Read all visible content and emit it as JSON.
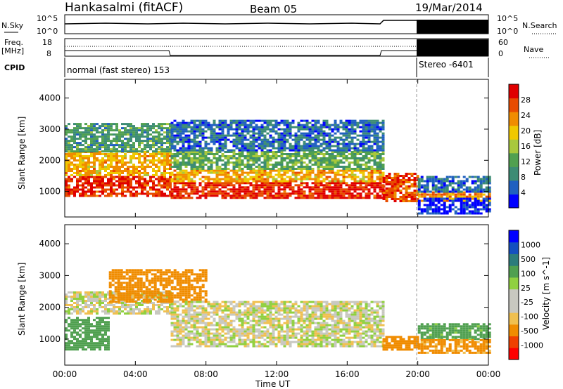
{
  "header": {
    "station": "Hankasalmi (fitACF)",
    "beam": "Beam 05",
    "date": "19/Mar/2014"
  },
  "noise_panel": {
    "left_label": "N.Sky",
    "left_ticks": [
      "10^5",
      "10^0"
    ],
    "right_ticks": [
      "10^5",
      "10^0"
    ],
    "right_label": "N.Search"
  },
  "freq_panel": {
    "left_label_1": "Freq.",
    "left_label_2": "[MHz]",
    "left_ticks": [
      "18",
      "8"
    ],
    "right_ticks": [
      "60",
      "0"
    ],
    "right_label": "Nave"
  },
  "cpid_panel": {
    "label": "CPID",
    "mode_1": "normal (fast stereo) 153",
    "mode_2": "Stereo -6401"
  },
  "chart_data": [
    {
      "type": "heatmap",
      "title": "",
      "xlabel": "Time UT",
      "ylabel": "Slant Range [km]",
      "xlim_hours": [
        0,
        24
      ],
      "ylim": [
        180,
        4600
      ],
      "y_ticks": [
        "1000",
        "2000",
        "3000",
        "4000"
      ],
      "colorbar": {
        "label": "Power [dB]",
        "ticks": [
          "28",
          "24",
          "20",
          "16",
          "12",
          "8",
          "4"
        ],
        "range": [
          0,
          30
        ],
        "colors": [
          "#0000ff",
          "#2060c0",
          "#3c8c74",
          "#50a050",
          "#a8c83c",
          "#f0c800",
          "#f08c00",
          "#e84c00",
          "#e00000"
        ]
      },
      "echo_bands": [
        {
          "x": [
            0.0,
            6.0
          ],
          "y": [
            850,
            1500
          ],
          "value": 27
        },
        {
          "x": [
            0.0,
            6.0
          ],
          "y": [
            1500,
            2300
          ],
          "value": 20
        },
        {
          "x": [
            0.0,
            6.0
          ],
          "y": [
            2300,
            3200
          ],
          "value": 10
        },
        {
          "x": [
            6.0,
            18.0
          ],
          "y": [
            800,
            1300
          ],
          "value": 27
        },
        {
          "x": [
            6.0,
            18.0
          ],
          "y": [
            1300,
            1700
          ],
          "value": 20
        },
        {
          "x": [
            6.0,
            18.0
          ],
          "y": [
            1700,
            2300
          ],
          "value": 12
        },
        {
          "x": [
            6.0,
            18.0
          ],
          "y": [
            2300,
            3300
          ],
          "value": 6
        },
        {
          "x": [
            18.0,
            20.0
          ],
          "y": [
            700,
            1600
          ],
          "value": 25
        },
        {
          "x": [
            20.0,
            24.0
          ],
          "y": [
            700,
            1000
          ],
          "value": 22
        },
        {
          "x": [
            20.0,
            24.0
          ],
          "y": [
            1000,
            1500
          ],
          "value": 6
        },
        {
          "x": [
            20.0,
            24.0
          ],
          "y": [
            300,
            800
          ],
          "value": 2
        }
      ]
    },
    {
      "type": "heatmap",
      "title": "",
      "xlabel": "Time UT",
      "ylabel": "Slant Range [km]",
      "xlim_hours": [
        0,
        24
      ],
      "ylim": [
        180,
        4600
      ],
      "y_ticks": [
        "1000",
        "2000",
        "3000",
        "4000"
      ],
      "x_ticks": [
        "00:00",
        "04:00",
        "08:00",
        "12:00",
        "16:00",
        "20:00",
        "00:00"
      ],
      "colorbar": {
        "label": "Velocity [m s^-1]",
        "ticks": [
          "1000",
          "500",
          "100",
          "25",
          "-25",
          "-100",
          "-500",
          "-1000"
        ],
        "colors": [
          "#ff0000",
          "#f04000",
          "#f08c00",
          "#f0c050",
          "#c8c8c0",
          "#c8c8c0",
          "#90d040",
          "#50a050",
          "#2c7c7c",
          "#1450c0",
          "#0000ff"
        ]
      },
      "echo_bands": [
        {
          "x": [
            0.0,
            2.5
          ],
          "y": [
            700,
            1700
          ],
          "value": 200
        },
        {
          "x": [
            0.0,
            6.0
          ],
          "y": [
            1800,
            2500
          ],
          "value": 0
        },
        {
          "x": [
            2.5,
            8.0
          ],
          "y": [
            2200,
            3200
          ],
          "value": -200
        },
        {
          "x": [
            6.0,
            18.0
          ],
          "y": [
            800,
            2200
          ],
          "value": 0
        },
        {
          "x": [
            18.0,
            20.0
          ],
          "y": [
            700,
            1100
          ],
          "value": -300
        },
        {
          "x": [
            20.0,
            24.0
          ],
          "y": [
            1000,
            1500
          ],
          "value": 150
        },
        {
          "x": [
            20.0,
            24.0
          ],
          "y": [
            600,
            1000
          ],
          "value": -150
        }
      ]
    }
  ]
}
